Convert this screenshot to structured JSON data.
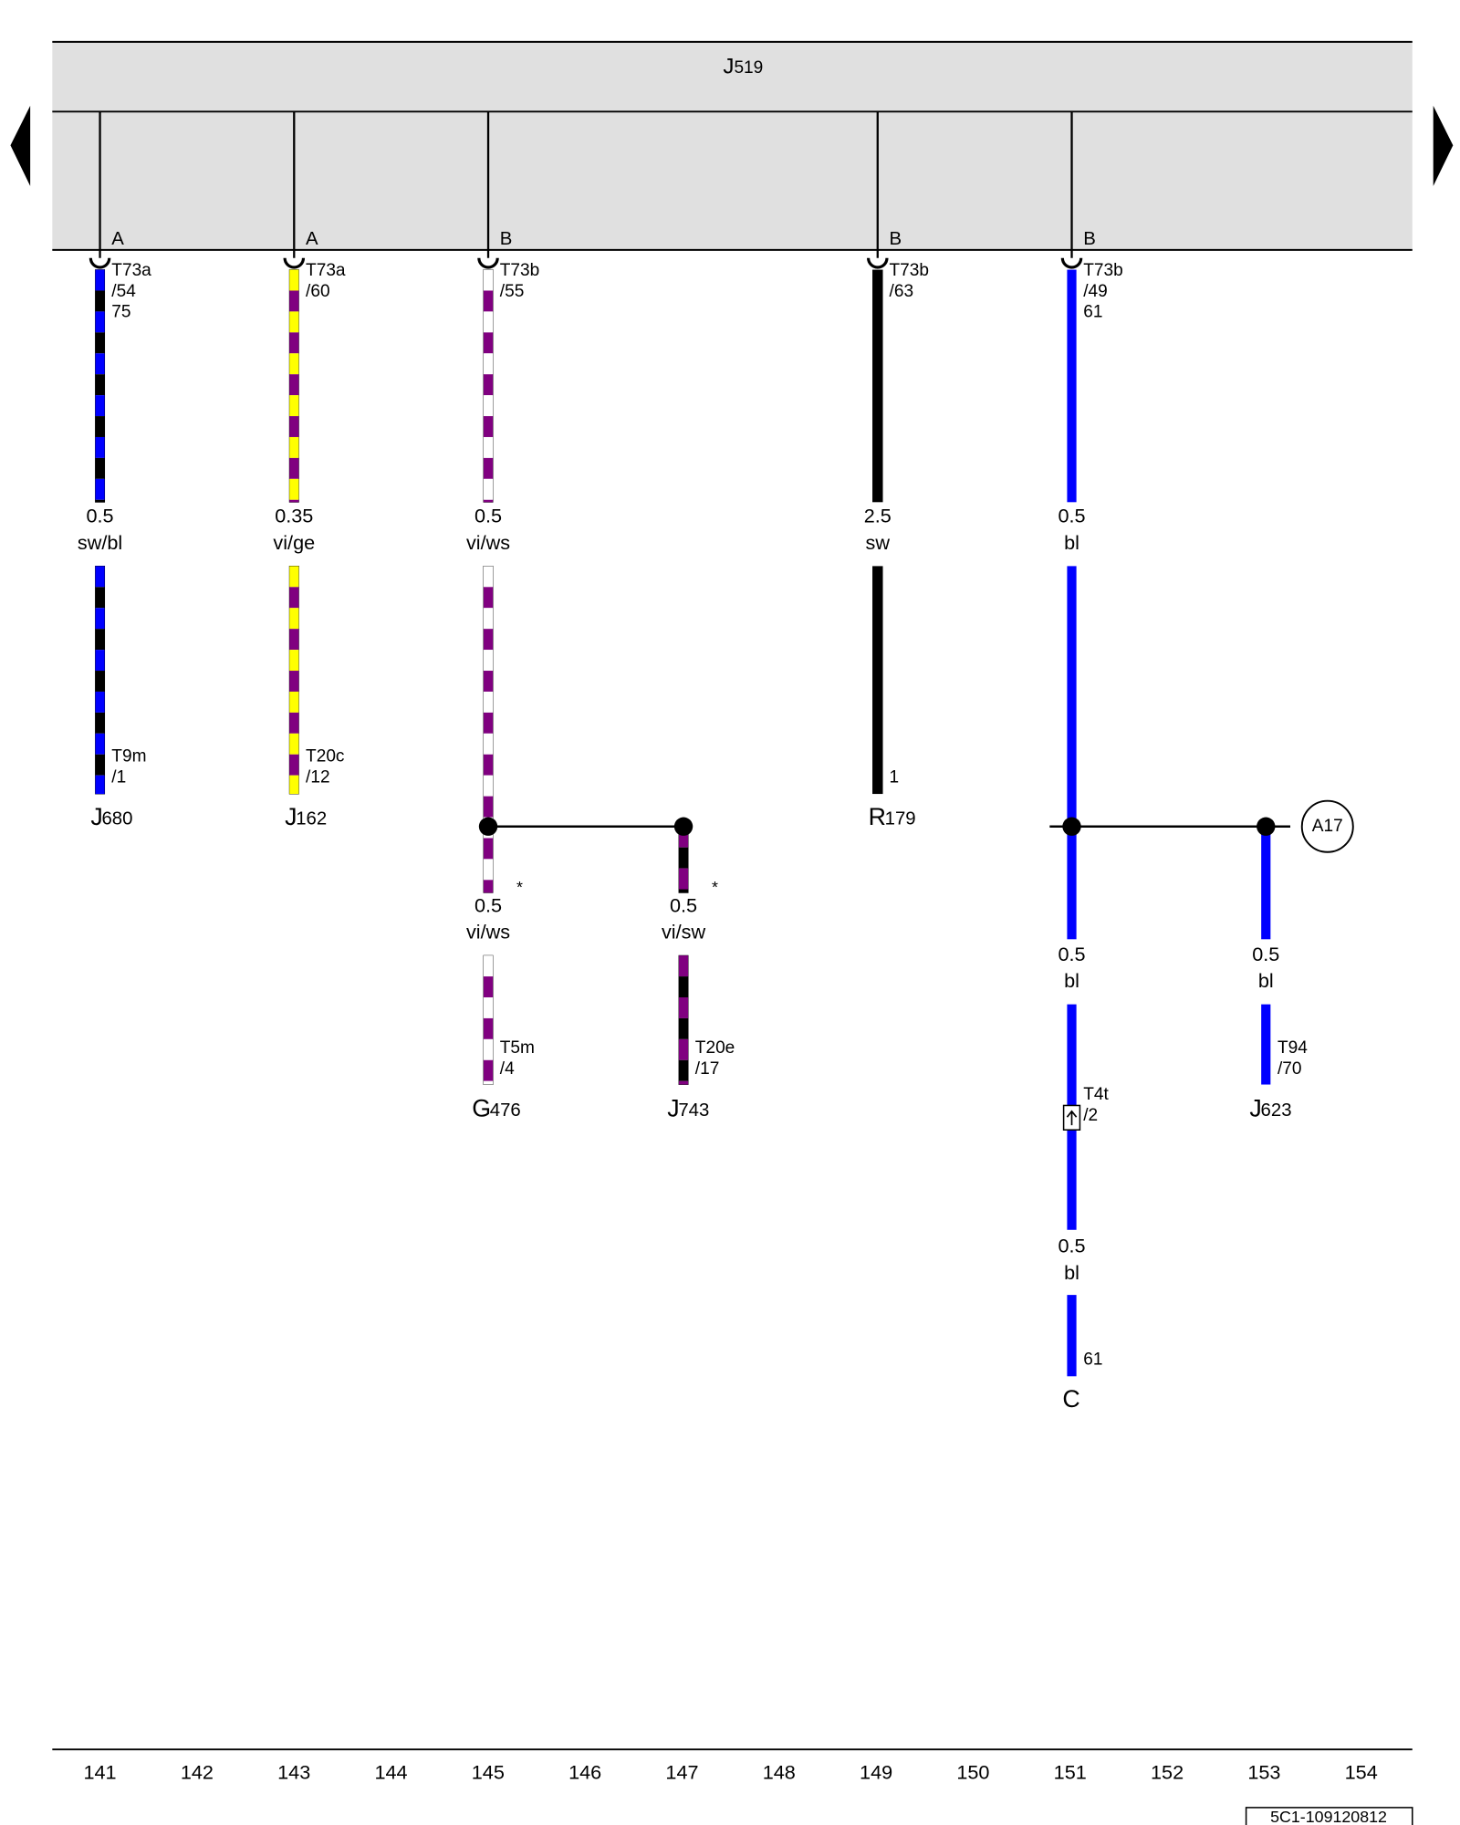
{
  "header": {
    "letter": "J",
    "number": "519"
  },
  "wires": [
    {
      "pin": "A",
      "connector": "T73a",
      "pin_no": "/54",
      "terminal": "75",
      "gauge": "0.5",
      "code": "sw/bl",
      "colors": [
        "#0000ff",
        "#000000"
      ],
      "end": [
        "T9m",
        "/1"
      ],
      "component": [
        "J",
        "680"
      ]
    },
    {
      "pin": "A",
      "connector": "T73a",
      "pin_no": "/60",
      "gauge": "0.35",
      "code": "vi/ge",
      "colors": [
        "#ffff00",
        "#800080"
      ],
      "end": [
        "T20c",
        "/12"
      ],
      "component": [
        "J",
        "162"
      ]
    },
    {
      "pin": "B",
      "connector": "T73b",
      "pin_no": "/55",
      "gauge": "0.5",
      "code": "vi/ws",
      "colors": [
        "#ffffff",
        "#800080"
      ]
    },
    {
      "pin": "B",
      "connector": "T73b",
      "pin_no": "/63",
      "gauge": "2.5",
      "code": "sw",
      "colors": [
        "#000000"
      ],
      "end": [
        "1"
      ],
      "component": [
        "R",
        "179"
      ]
    },
    {
      "pin": "B",
      "connector": "T73b",
      "pin_no": "/49",
      "terminal": "61",
      "gauge": "0.5",
      "code": "bl",
      "colors": [
        "#0000ff"
      ]
    }
  ],
  "branches": [
    {
      "gauge": "0.5",
      "code": "vi/ws",
      "mark": "*",
      "colors": [
        "#ffffff",
        "#800080"
      ],
      "end": [
        "T5m",
        "/4"
      ],
      "component": [
        "G",
        "476"
      ]
    },
    {
      "gauge": "0.5",
      "code": "vi/sw",
      "mark": "*",
      "colors": [
        "#800080",
        "#000000"
      ],
      "end": [
        "T20e",
        "/17"
      ],
      "component": [
        "J",
        "743"
      ]
    },
    {
      "gauge": "0.5",
      "code": "bl",
      "colors": [
        "#0000ff"
      ],
      "connector": [
        "T4t",
        "/2"
      ],
      "gauge2": "0.5",
      "code2": "bl",
      "end": [
        "61"
      ],
      "component": [
        "C"
      ]
    },
    {
      "gauge": "0.5",
      "code": "bl",
      "colors": [
        "#0000ff"
      ],
      "end": [
        "T94",
        "/70"
      ],
      "component": [
        "J",
        "623"
      ]
    }
  ],
  "link": "A17",
  "columns": [
    "141",
    "142",
    "143",
    "144",
    "145",
    "146",
    "147",
    "148",
    "149",
    "150",
    "151",
    "152",
    "153",
    "154"
  ],
  "footer": "5C1-109120812"
}
